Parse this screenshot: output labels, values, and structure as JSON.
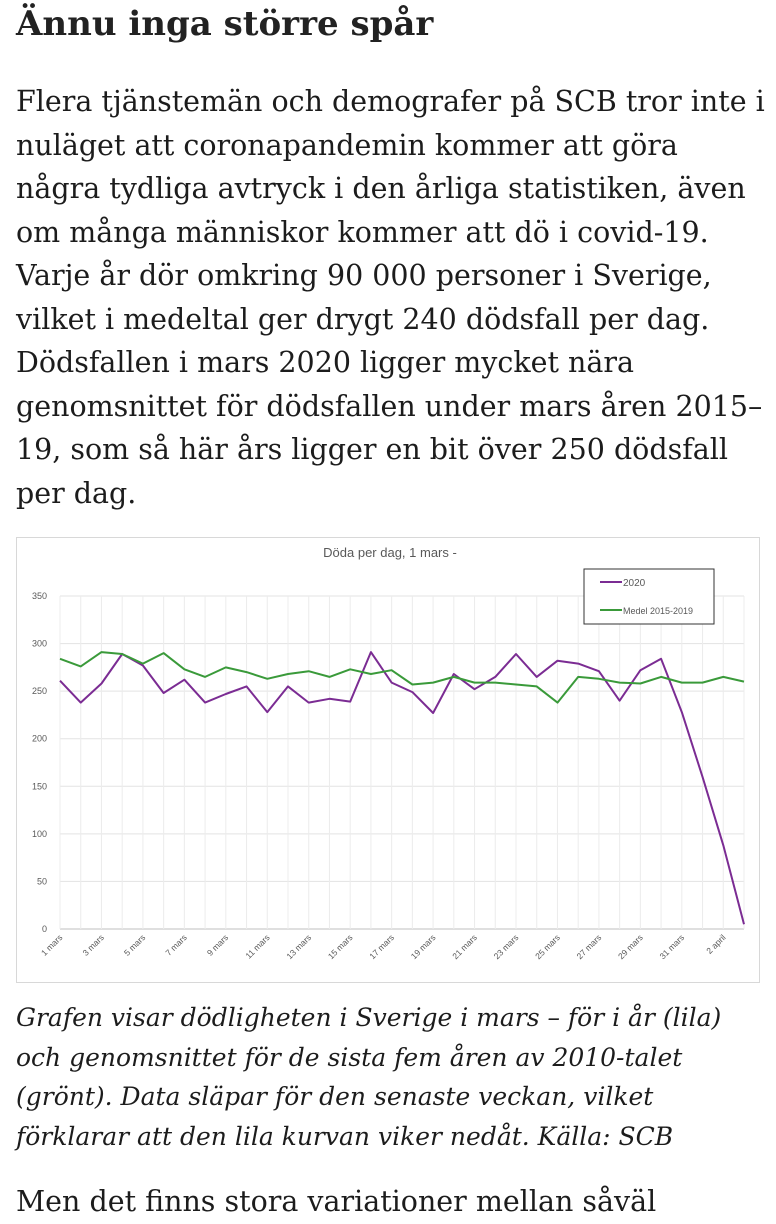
{
  "article": {
    "heading": "Ännu inga större spår",
    "paragraph": "Flera tjänstemän och demografer på SCB tror inte i nuläget att coronapandemin kommer att göra några tydliga avtryck i den årliga statistiken, även om många människor kommer att dö i covid-19. Varje år dör omkring 90 000 personer i Sverige, vilket i medeltal ger drygt 240 dödsfall per dag. Dödsfallen i mars 2020 ligger mycket nära genomsnittet för dödsfallen under mars åren 2015–19, som så här års ligger en bit över 250 dödsfall per dag.",
    "caption": "Grafen visar dödligheten i Sverige i mars – för i år (lila) och genomsnittet för de sista fem åren av 2010-talet (grönt). Data släpar för den senaste veckan, vilket förklarar att den lila kurvan viker nedåt. Källa: SCB",
    "next_paragraph_partial": "Men det finns stora variationer mellan såväl"
  },
  "chart_data": {
    "type": "line",
    "title": "Döda per dag, 1 mars -",
    "x": [
      "1 mars",
      "2 mars",
      "3 mars",
      "4 mars",
      "5 mars",
      "6 mars",
      "7 mars",
      "8 mars",
      "9 mars",
      "10 mars",
      "11 mars",
      "12 mars",
      "13 mars",
      "14 mars",
      "15 mars",
      "16 mars",
      "17 mars",
      "18 mars",
      "19 mars",
      "20 mars",
      "21 mars",
      "22 mars",
      "23 mars",
      "24 mars",
      "25 mars",
      "26 mars",
      "27 mars",
      "28 mars",
      "29 mars",
      "30 mars",
      "31 mars",
      "1 april",
      "2 april",
      "3 april"
    ],
    "x_tick_labels": [
      "1 mars",
      "3 mars",
      "5 mars",
      "7 mars",
      "9 mars",
      "11 mars",
      "13 mars",
      "15 mars",
      "17 mars",
      "19 mars",
      "21 mars",
      "23 mars",
      "25 mars",
      "27 mars",
      "29 mars",
      "31 mars",
      "2 april"
    ],
    "series": [
      {
        "name": "2020",
        "color": "#7b2c93",
        "values": [
          261,
          238,
          258,
          289,
          277,
          248,
          262,
          238,
          247,
          255,
          228,
          255,
          238,
          242,
          239,
          291,
          259,
          249,
          227,
          268,
          252,
          265,
          289,
          265,
          282,
          279,
          271,
          240,
          272,
          284,
          228,
          160,
          88,
          5
        ]
      },
      {
        "name": "Medel 2015-2019",
        "color": "#3a9a3a",
        "values": [
          284,
          276,
          291,
          289,
          279,
          290,
          273,
          265,
          275,
          270,
          263,
          268,
          271,
          265,
          273,
          268,
          272,
          257,
          259,
          265,
          259,
          259,
          257,
          255,
          238,
          265,
          263,
          259,
          258,
          265,
          259,
          259,
          265,
          260
        ]
      }
    ],
    "ylim": [
      0,
      350
    ],
    "yticks": [
      0,
      50,
      100,
      150,
      200,
      250,
      300,
      350
    ],
    "grid": true,
    "legend": "top-right",
    "xlabel": "",
    "ylabel": ""
  }
}
